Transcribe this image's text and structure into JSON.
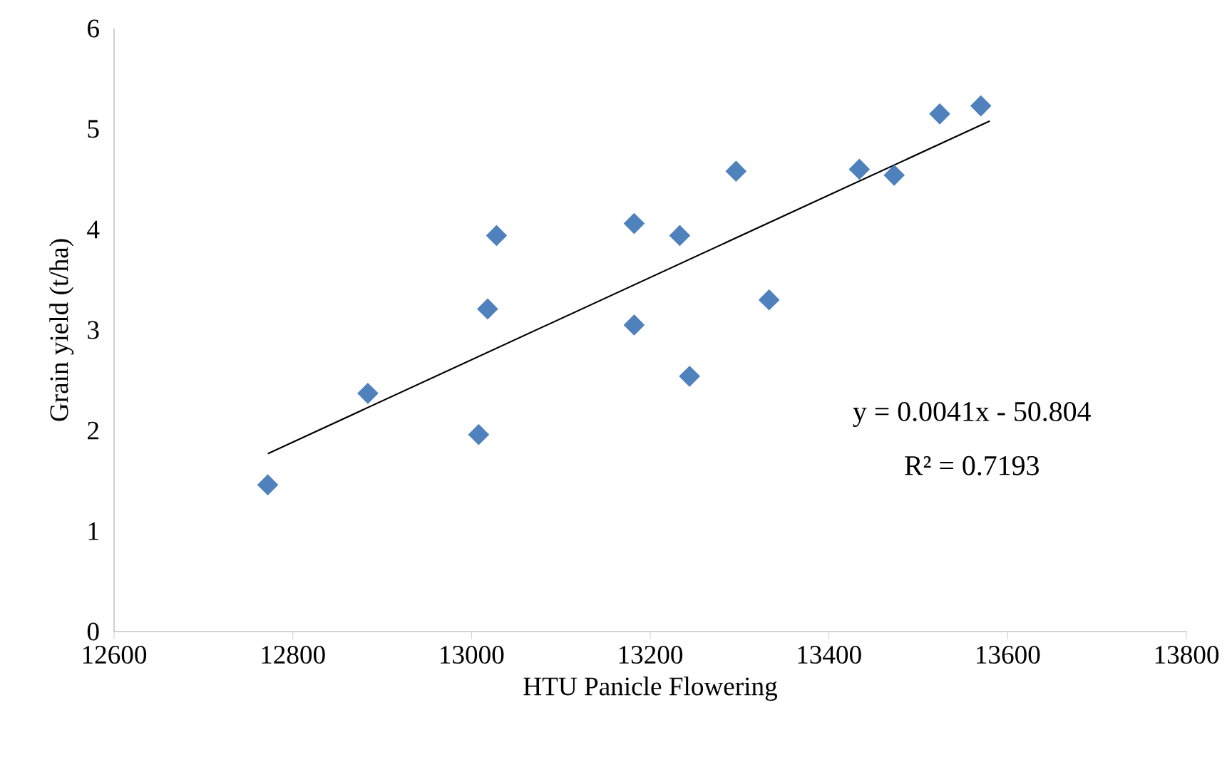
{
  "chart_data": {
    "type": "scatter",
    "xlabel": "HTU Panicle Flowering",
    "ylabel": "Grain yield (t/ha)",
    "xlim": [
      12600,
      13800
    ],
    "xticks": [
      12600,
      12800,
      13000,
      13200,
      13400,
      13600,
      13800
    ],
    "ylim": [
      0,
      6
    ],
    "yticks": [
      0,
      1,
      2,
      3,
      4,
      5,
      6
    ],
    "grid": false,
    "series": [
      {
        "marker": "diamond",
        "color": "#4f81bd",
        "x": [
          12772,
          12884,
          13008,
          13018,
          13028,
          13182,
          13182,
          13233,
          13244,
          13296,
          13333,
          13434,
          13473,
          13524,
          13570
        ],
        "values": [
          1.46,
          2.37,
          1.96,
          3.21,
          3.94,
          4.06,
          3.05,
          3.94,
          2.54,
          4.58,
          3.3,
          4.6,
          4.54,
          5.15,
          5.23
        ]
      },
      {
        "type": "line",
        "marker": "none",
        "color": "#000000",
        "x": [
          12772,
          13580
        ],
        "values": [
          1.77,
          5.08
        ]
      }
    ],
    "annotations": [
      "y = 0.0041x - 50.804",
      "R² = 0.7193"
    ]
  }
}
